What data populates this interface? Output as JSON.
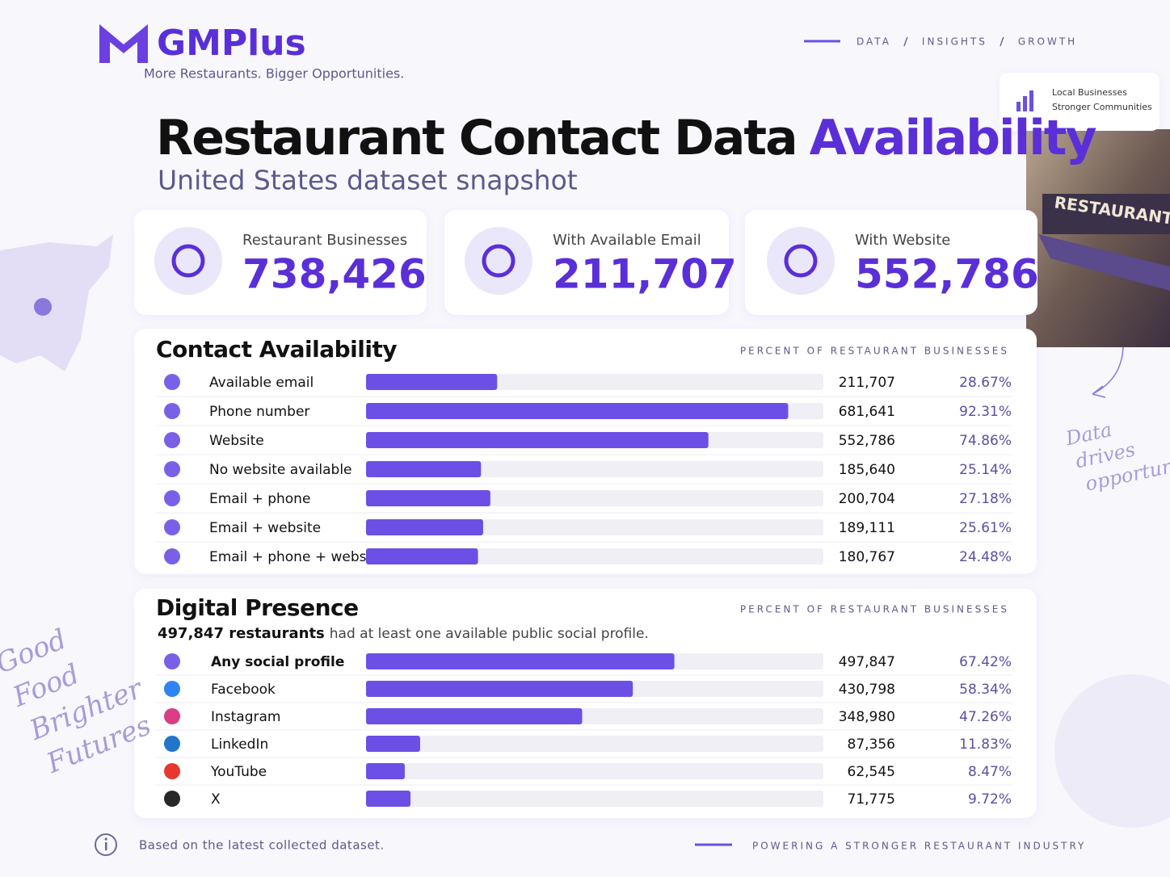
{
  "header": {
    "brand": "GMPlus",
    "tagline": "More Restaurants. Bigger Opportunities.",
    "nav": [
      "DATA",
      "INSIGHTS",
      "GROWTH"
    ],
    "title_main": "Restaurant Contact Data",
    "title_highlight": "Availability",
    "subtitle": "United States dataset snapshot",
    "badge": [
      "Local Businesses",
      "Stronger Communities"
    ]
  },
  "stats": [
    {
      "label": "Restaurant Businesses",
      "value": "738,426"
    },
    {
      "label": "With Available Email",
      "value": "211,707"
    },
    {
      "label": "With Website",
      "value": "552,786"
    }
  ],
  "chart_data": [
    {
      "type": "bar",
      "title": "Contact Availability",
      "axis_label": "PERCENT OF RESTAURANT BUSINESSES",
      "color": "#6c4fe4",
      "xlim": [
        0,
        100
      ],
      "categories": [
        "Available email",
        "Phone number",
        "Website",
        "No website available",
        "Email + phone",
        "Email + website",
        "Email + phone + website"
      ],
      "counts": [
        "211,707",
        "681,641",
        "552,786",
        "185,640",
        "200,704",
        "189,111",
        "180,767"
      ],
      "values": [
        28.67,
        92.31,
        74.86,
        25.14,
        27.18,
        25.61,
        24.48
      ],
      "value_labels": [
        "28.67%",
        "92.31%",
        "74.86%",
        "25.14%",
        "27.18%",
        "25.61%",
        "24.48%"
      ]
    },
    {
      "type": "bar",
      "title": "Digital Presence",
      "axis_label": "PERCENT OF RESTAURANT BUSINESSES",
      "note_bold": "497,847 restaurants",
      "note": "had at least one available public social profile.",
      "color": "#6c4fe4",
      "xlim": [
        0,
        100
      ],
      "categories": [
        "Any social profile",
        "Facebook",
        "Instagram",
        "LinkedIn",
        "YouTube",
        "X"
      ],
      "counts": [
        "497,847",
        "430,798",
        "348,980",
        "87,356",
        "62,545",
        "71,775"
      ],
      "values": [
        67.42,
        58.34,
        47.26,
        11.83,
        8.47,
        9.72
      ],
      "value_labels": [
        "67.42%",
        "58.34%",
        "47.26%",
        "11.83%",
        "8.47%",
        "9.72%"
      ]
    }
  ],
  "footer": {
    "note": "Based on the latest collected dataset.",
    "tagline": "POWERING A STRONGER RESTAURANT INDUSTRY"
  },
  "decor": {
    "sign": "RESTAURANT",
    "side_note": [
      "Data",
      "drives",
      "opportunity"
    ],
    "hand_note": [
      "Good",
      "Food",
      "Brighter",
      "Futures"
    ]
  }
}
